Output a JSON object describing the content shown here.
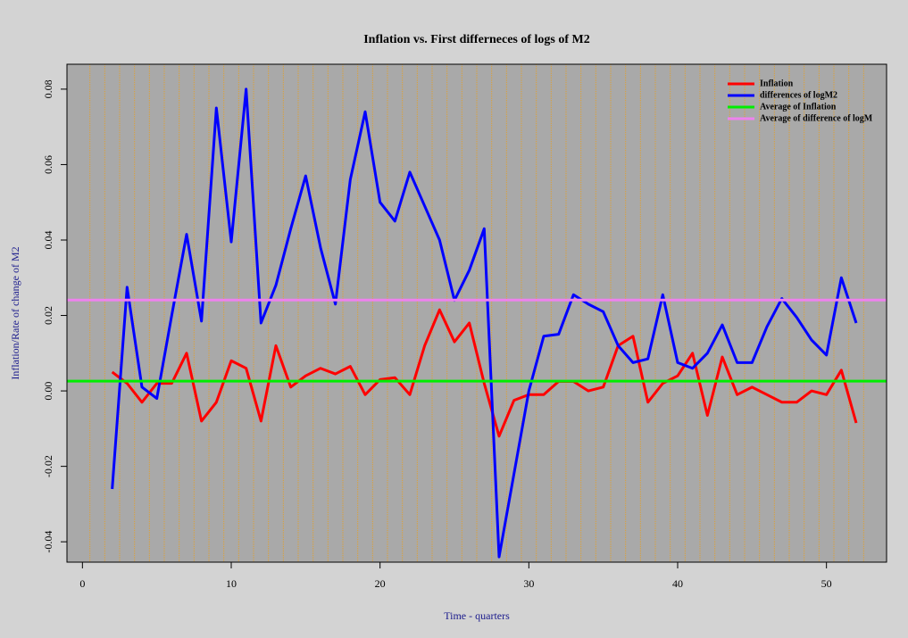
{
  "chart_data": {
    "type": "line",
    "title": "Inflation vs. First differneces of logs of M2",
    "x_label": "Time - quarters",
    "y_label": "Inflation/Rate of change of M2",
    "x": [
      2,
      3,
      4,
      5,
      6,
      7,
      8,
      9,
      10,
      11,
      12,
      13,
      14,
      15,
      16,
      17,
      18,
      19,
      20,
      21,
      22,
      23,
      24,
      25,
      26,
      27,
      28,
      29,
      30,
      31,
      32,
      33,
      34,
      35,
      36,
      37,
      38,
      39,
      40,
      41,
      42,
      43,
      44,
      45,
      46,
      47,
      48,
      49,
      50,
      51,
      52
    ],
    "series": [
      {
        "name": "Inflation",
        "color": "#ff0000",
        "values": [
          0.005,
          0.002,
          -0.003,
          0.002,
          0.002,
          0.01,
          -0.008,
          -0.003,
          0.008,
          0.006,
          -0.008,
          0.012,
          0.001,
          0.004,
          0.006,
          0.0045,
          0.0065,
          -0.001,
          0.003,
          0.0035,
          -0.001,
          0.012,
          0.0215,
          0.013,
          0.018,
          0.002,
          -0.012,
          -0.0025,
          -0.001,
          -0.001,
          0.0025,
          0.0025,
          0,
          0.001,
          0.012,
          0.0145,
          -0.003,
          0.002,
          0.004,
          0.01,
          -0.0065,
          0.009,
          -0.001,
          0.001,
          -0.001,
          -0.003,
          -0.003,
          0,
          -0.001,
          0.0055,
          -0.0085
        ]
      },
      {
        "name": "differences of logM2",
        "color": "#0000ff",
        "values": [
          -0.026,
          0.0275,
          0.001,
          -0.002,
          0.02,
          0.0415,
          0.0185,
          0.075,
          0.0395,
          0.08,
          0.018,
          0.028,
          0.043,
          0.057,
          0.038,
          0.023,
          0.056,
          0.074,
          0.05,
          0.045,
          0.058,
          0.049,
          0.04,
          0.024,
          0.032,
          0.043,
          -0.044,
          -0.022,
          0.0,
          0.0145,
          0.015,
          0.0255,
          0.023,
          0.021,
          0.012,
          0.0075,
          0.0085,
          0.0255,
          0.0075,
          0.006,
          0.01,
          0.0175,
          0.0075,
          0.0075,
          0.017,
          0.0245,
          0.0195,
          0.0135,
          0.0095,
          0.03,
          0.018
        ]
      }
    ],
    "hlines": [
      {
        "name": "Average of Inflation",
        "color": "#00ee00",
        "value": 0.0026
      },
      {
        "name": "Average of difference of logM",
        "color": "#ee82ee",
        "value": 0.0241
      }
    ],
    "xlim": [
      -1.04,
      54.04
    ],
    "ylim": [
      -0.0454,
      0.0866
    ],
    "xticks": [
      0,
      10,
      20,
      30,
      40,
      50
    ],
    "yticks": [
      -0.04,
      -0.02,
      {
        "value": 0,
        "label": "0.00"
      },
      0.02,
      0.04,
      0.06,
      0.08
    ],
    "vgrid": [
      0.5,
      1.5,
      2.5,
      3.5,
      4.5,
      5.5,
      6.5,
      7.5,
      8.5,
      9.5,
      10.5,
      11.5,
      12.5,
      13.5,
      14.5,
      15.5,
      16.5,
      17.5,
      18.5,
      19.5,
      20.5,
      21.5,
      22.5,
      23.5,
      24.5,
      25.5,
      26.5,
      27.5,
      28.5,
      29.5,
      30.5,
      31.5,
      32.5,
      33.5,
      34.5,
      35.5,
      36.5,
      37.5,
      38.5,
      39.5,
      40.5,
      41.5,
      42.5,
      43.5,
      44.5,
      45.5,
      46.5,
      47.5,
      48.5,
      49.5,
      50.5,
      51.5,
      52.5
    ],
    "vgrid_color": "#e0a030",
    "legend": "top-right"
  }
}
